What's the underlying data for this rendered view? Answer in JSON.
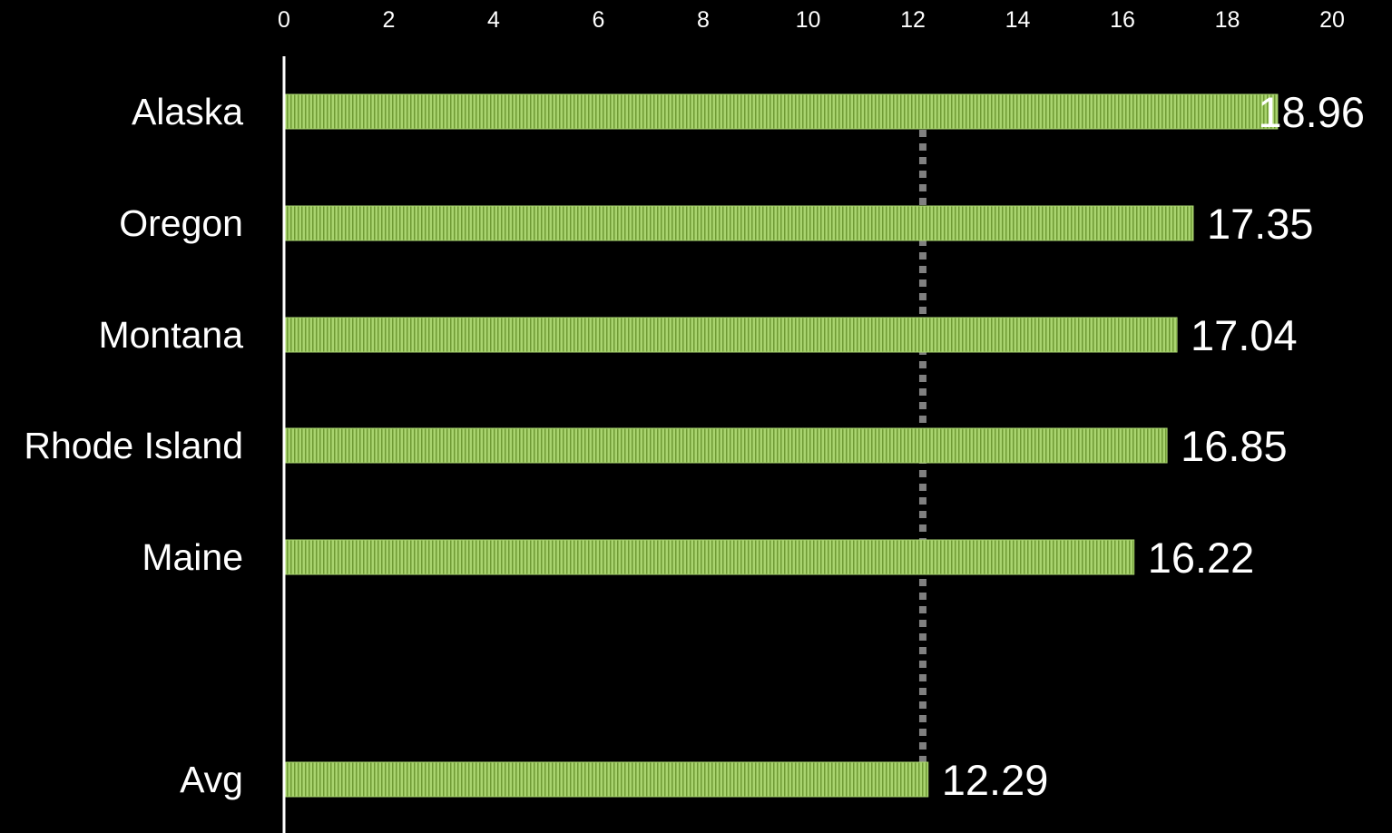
{
  "chart_data": {
    "type": "bar",
    "orientation": "horizontal",
    "categories": [
      "Alaska",
      "Oregon",
      "Montana",
      "Rhode Island",
      "Maine",
      "Avg"
    ],
    "values": [
      18.96,
      17.35,
      17.04,
      16.85,
      16.22,
      12.29
    ],
    "data_labels": [
      "18.96",
      "17.35",
      "17.04",
      "16.85",
      "16.22",
      "12.29"
    ],
    "x_ticks": [
      0,
      2,
      4,
      6,
      8,
      10,
      12,
      14,
      16,
      18,
      20
    ],
    "xlim": [
      0,
      20
    ],
    "x_axis_position": "top",
    "grid": false,
    "legend": "none",
    "reference_line": {
      "value": 12.19,
      "style": "dotted",
      "color": "#808080"
    },
    "colors": {
      "background": "#000000",
      "bar_fill": "#a9d46f",
      "bar_stripe": "#6f9a34",
      "text": "#ffffff",
      "axis": "#ffffff"
    }
  }
}
